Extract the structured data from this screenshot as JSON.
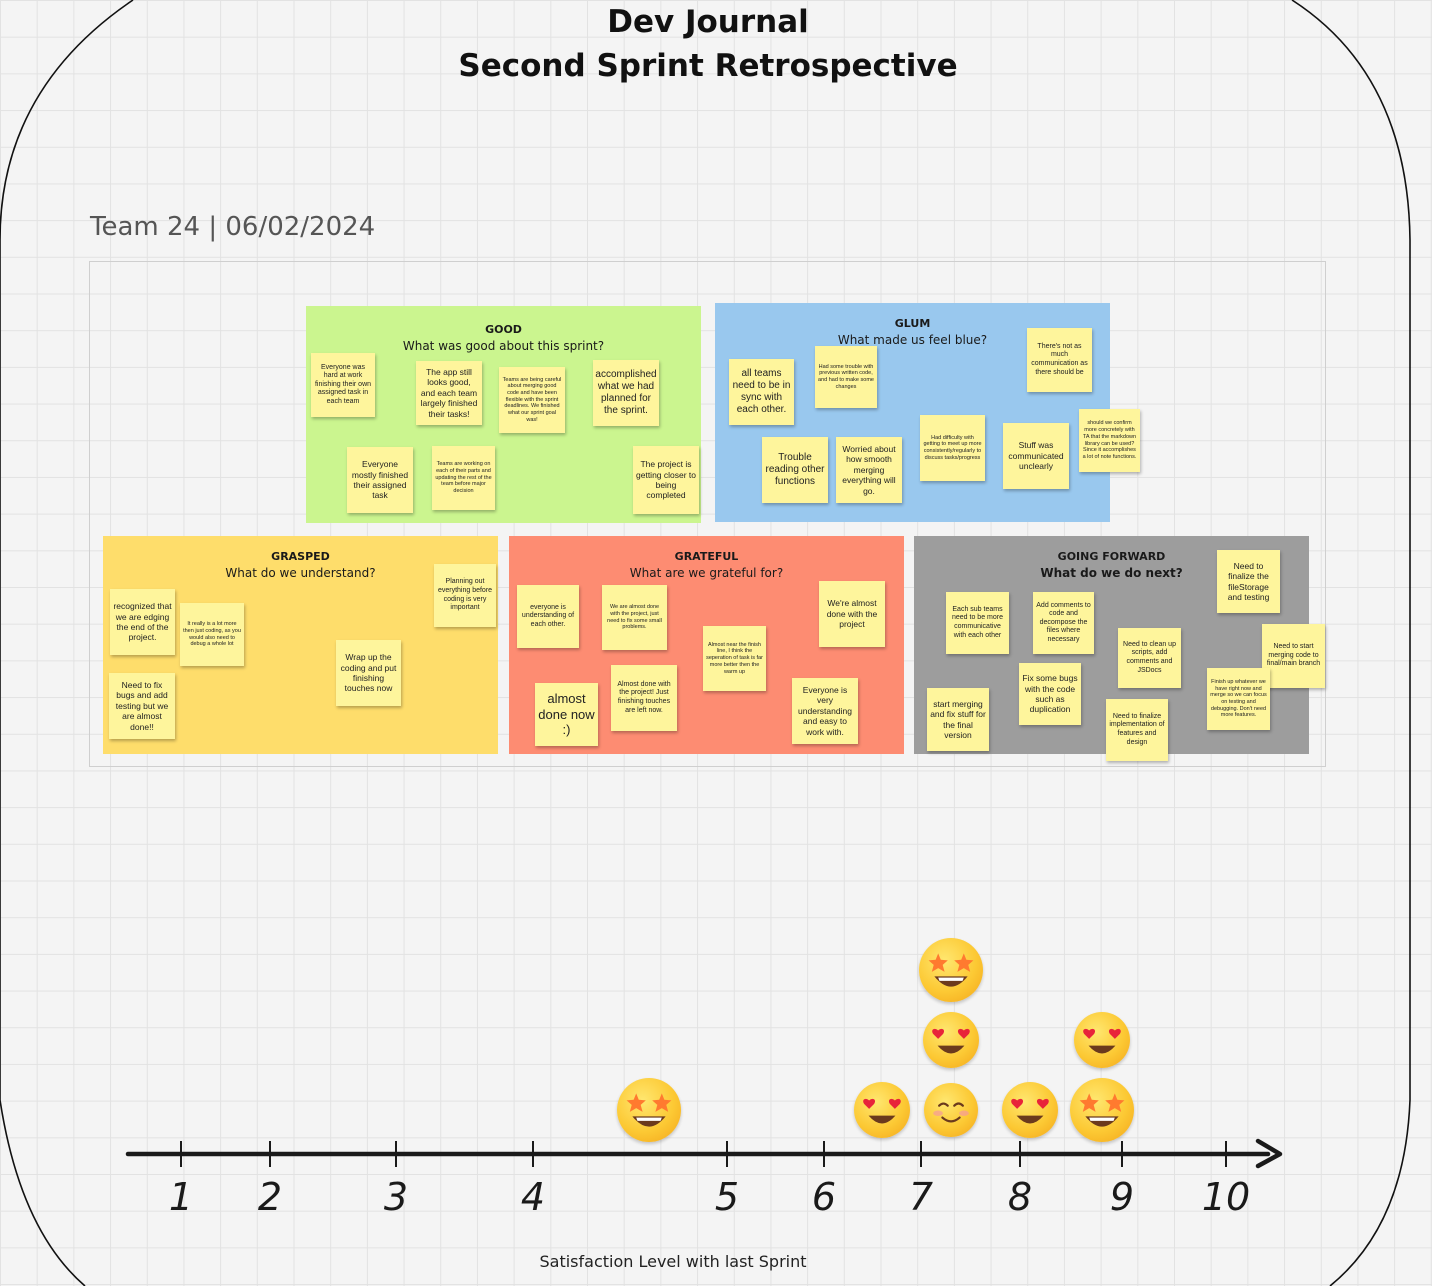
{
  "header": {
    "title_line1": "Dev Journal",
    "title_line2": "Second Sprint Retrospective",
    "subtitle": "Team 24 | 06/02/2024"
  },
  "panels": {
    "good": {
      "title": "GOOD",
      "question": "What was good about this sprint?",
      "color": "#cbf58f",
      "notes": [
        "Everyone was hard at work finishing their own assigned task in each team",
        "The app still looks good, and each team largely finished their tasks!",
        "Teams are being careful about merging good code and have been flexible with the sprint deadlines. We finished what our sprint goal was!",
        "accomplished what we had planned for the sprint.",
        "Everyone mostly finished their assigned task",
        "Teams are working on each of their parts and updating the rest of the team before major decision",
        "The project is getting closer to being completed"
      ]
    },
    "glum": {
      "title": "GLUM",
      "question": "What made us feel blue?",
      "color": "#99c8ee",
      "notes": [
        "all teams need to be in sync with each other.",
        "Had some trouble with previous written code, and had to make some changes",
        "There's not as much communication as there should be",
        "Trouble reading other functions",
        "Worried about how smooth merging everything will go.",
        "Had difficulty with getting to meet up more consistently/regularly to discuss tasks/progress",
        "Stuff was communicated unclearly",
        "should we confirm more concretely with TA that the markdown library can be used? Since it accomplishes a lot of note functions."
      ]
    },
    "grasped": {
      "title": "GRASPED",
      "question": "What do we understand?",
      "color": "#fedd6b",
      "notes": [
        "recognized that we are edging the end of the project.",
        "It really is a lot more then just coding, as you would also need to debug a whole lot",
        "Planning out everything before coding is very important",
        "Wrap up the coding and put finishing touches now",
        "Need to fix bugs and add testing but we are almost done!!"
      ]
    },
    "grateful": {
      "title": "GRATEFUL",
      "question": "What are we grateful for?",
      "color": "#fd8c72",
      "notes": [
        "everyone is understanding of each other.",
        "We are almost done with the project, just need to fix some small problems.",
        "We're almost done with the project",
        "Almost near the finish line, I think the seperation of task is far more better then the warm up",
        "Almost done with the project! Just finishing touches are left now.",
        "almost done now :)",
        "Everyone is very understanding and easy to work with."
      ]
    },
    "forward": {
      "title": "GOING FORWARD",
      "question": "What do we do next?",
      "color": "#9d9d9d",
      "notes": [
        "Each sub teams need to be more communicative with each other",
        "Add comments to code and decompose the files where necessary",
        "Need to finalize the fileStorage and testing",
        "Need to clean up scripts, add comments and JSDocs",
        "Need to start merging code to final/main branch",
        "Fix some bugs with the code such as duplication",
        "Finish up whatever we have right now and merge so we can focus on testing and debugging. Don't need more features.",
        "start merging and fix stuff for the final version",
        "Need to finalize implementation of features and design"
      ]
    }
  },
  "chart_data": {
    "type": "scatter",
    "xlabel": "Satisfaction Level with last Sprint",
    "xlim": [
      1,
      10
    ],
    "ticks": [
      "1",
      "2",
      "3",
      "4",
      "5",
      "6",
      "7",
      "8",
      "9",
      "10"
    ],
    "points": [
      {
        "x": 4.6,
        "face": "star-struck"
      },
      {
        "x": 6.6,
        "face": "heart-eyes"
      },
      {
        "x": 7.3,
        "face": "smiling-blush"
      },
      {
        "x": 7.3,
        "face": "heart-eyes"
      },
      {
        "x": 7.3,
        "face": "star-struck"
      },
      {
        "x": 8.1,
        "face": "heart-eyes"
      },
      {
        "x": 8.8,
        "face": "star-struck"
      },
      {
        "x": 8.8,
        "face": "heart-eyes"
      }
    ]
  }
}
